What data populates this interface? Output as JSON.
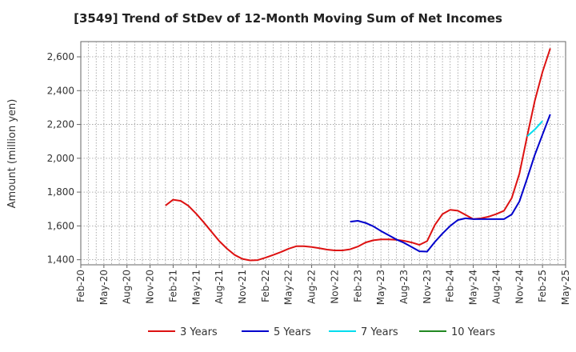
{
  "chart_data": {
    "type": "line",
    "title": "[3549]  Trend of StDev of 12-Month Moving Sum of Net Incomes",
    "ylabel": "Amount (million yen)",
    "xlabel": "",
    "xlim": [
      "2020-02",
      "2025-05"
    ],
    "ylim": [
      1370,
      2690
    ],
    "y_ticks": [
      1400,
      1600,
      1800,
      2000,
      2200,
      2400,
      2600
    ],
    "y_tick_labels": [
      "1,400",
      "1,600",
      "1,800",
      "2,000",
      "2,200",
      "2,400",
      "2,600"
    ],
    "x_tick_labels": [
      "Feb-20",
      "May-20",
      "Aug-20",
      "Nov-20",
      "Feb-21",
      "May-21",
      "Aug-21",
      "Nov-21",
      "Feb-22",
      "May-22",
      "Aug-22",
      "Nov-22",
      "Feb-23",
      "May-23",
      "Aug-23",
      "Nov-23",
      "Feb-24",
      "May-24",
      "Aug-24",
      "Nov-24",
      "Feb-25",
      "May-25"
    ],
    "grid": true,
    "legend_position": "bottom",
    "series": [
      {
        "name": "3 Years",
        "color": "#dd1111",
        "start": "2021-01",
        "values": [
          1720,
          1755,
          1748,
          1718,
          1672,
          1620,
          1565,
          1510,
          1465,
          1428,
          1405,
          1396,
          1398,
          1412,
          1428,
          1445,
          1465,
          1480,
          1480,
          1475,
          1468,
          1460,
          1455,
          1455,
          1462,
          1478,
          1502,
          1515,
          1520,
          1520,
          1518,
          1512,
          1502,
          1488,
          1510,
          1605,
          1670,
          1695,
          1690,
          1665,
          1640,
          1645,
          1655,
          1670,
          1690,
          1765,
          1910,
          2130,
          2340,
          2510,
          2650
        ]
      },
      {
        "name": "5 Years",
        "color": "#0000cc",
        "start": "2023-01",
        "values": [
          1625,
          1630,
          1618,
          1598,
          1570,
          1545,
          1520,
          1500,
          1475,
          1450,
          1448,
          1505,
          1555,
          1600,
          1635,
          1645,
          1640,
          1640,
          1640,
          1640,
          1640,
          1668,
          1745,
          1880,
          2020,
          2140,
          2260
        ]
      },
      {
        "name": "7 Years",
        "color": "#00ddee",
        "start": "2024-12",
        "values": [
          2130,
          2170,
          2220
        ]
      },
      {
        "name": "10 Years",
        "color": "#228822",
        "start": "2025-02",
        "values": []
      }
    ]
  }
}
